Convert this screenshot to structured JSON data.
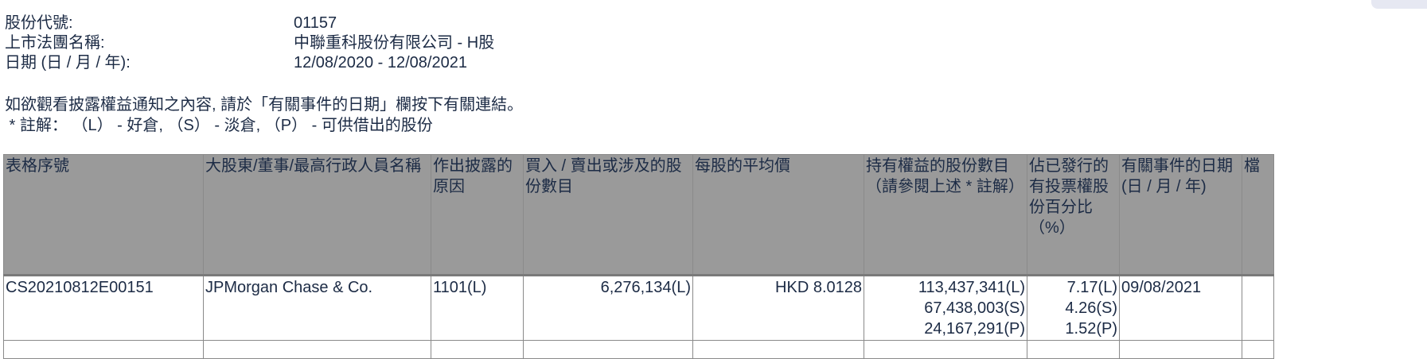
{
  "info": {
    "stock_code_label": "股份代號:",
    "stock_code": "01157",
    "company_label": "上市法團名稱:",
    "company": "中聯重科股份有限公司 - H股",
    "date_label": "日期 (日 / 月 / 年):",
    "date_range": "12/08/2020 - 12/08/2021"
  },
  "note": {
    "line1": "如欲觀看披露權益通知之內容, 請於「有關事件的日期」欄按下有關連結。",
    "line2": " * 註解： （L） - 好倉, （S） - 淡倉, （P） - 可供借出的股份"
  },
  "table": {
    "headers": [
      "表格序號",
      "大股東/董事/最高行政人員名稱",
      "作出披露的原因",
      "買入 / 賣出或涉及的股份數目",
      "每股的平均價",
      "持有權益的股份數目\n（請參閱上述 * 註解）",
      "佔已發行的有投票權股份百分比\n（%）",
      "有關事件的日期\n(日 / 月 / 年)",
      "檔"
    ],
    "rows": [
      {
        "form_no": "CS20210812E00151",
        "name": "JPMorgan Chase & Co.",
        "reason": "1101(L)",
        "shares_traded": "6,276,134(L)",
        "avg_price": "HKD 8.0128",
        "holdings": [
          "113,437,341(L)",
          "67,438,003(S)",
          "24,167,291(P)"
        ],
        "percent": [
          "7.17(L)",
          "4.26(S)",
          "1.52(P)"
        ],
        "event_date": "09/08/2021"
      }
    ]
  },
  "colors": {
    "header_bg": "#9a9a9a",
    "text": "#1c2b45"
  }
}
